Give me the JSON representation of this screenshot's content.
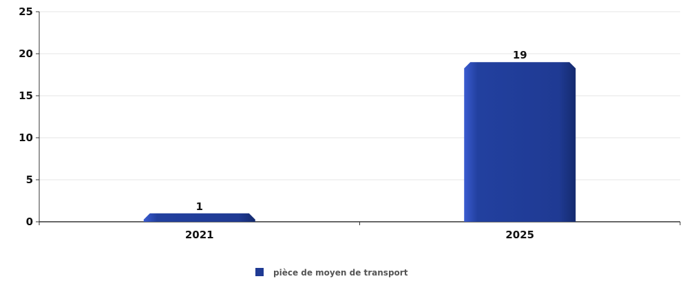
{
  "chart_data": {
    "type": "bar",
    "categories": [
      "2021",
      "2025"
    ],
    "series": [
      {
        "name": "pièce de moyen de transport",
        "values": [
          1,
          19
        ]
      }
    ],
    "data_labels": [
      "1",
      "19"
    ],
    "y_ticks": [
      0,
      5,
      10,
      15,
      20,
      25
    ],
    "ylim": [
      0,
      25
    ],
    "grid": true,
    "legend_position": "bottom-center",
    "colors": {
      "bar": "#1f3a93",
      "bar_light": "#3a5bd0",
      "bar_dark": "#142a6e",
      "grid": "#e6e6e6",
      "axis": "#333333"
    }
  }
}
